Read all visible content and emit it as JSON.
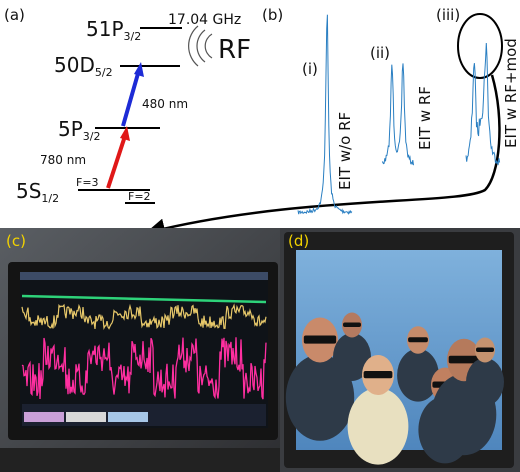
{
  "panel_a": {
    "label": "(a)",
    "levels": [
      {
        "name": "51P",
        "sub": "3/2"
      },
      {
        "name": "50D",
        "sub": "5/2"
      },
      {
        "name": "5P",
        "sub": "3/2"
      },
      {
        "name": "5S",
        "sub": "1/2"
      }
    ],
    "rf_frequency": "17.04 GHz",
    "rf_label": "RF",
    "coupling": "480 nm",
    "probe": "780 nm",
    "hyperfine": [
      "F=3",
      "F=2"
    ]
  },
  "panel_b": {
    "label": "(b)",
    "traces": [
      {
        "label": "(i)",
        "caption": "EIT w/o RF"
      },
      {
        "label": "(ii)",
        "caption": "EIT w RF"
      },
      {
        "label": "(iii)",
        "caption": "EIT w RF+mod"
      }
    ]
  },
  "panel_c": {
    "label": "(c)"
  },
  "panel_d": {
    "label": "(d)"
  }
}
